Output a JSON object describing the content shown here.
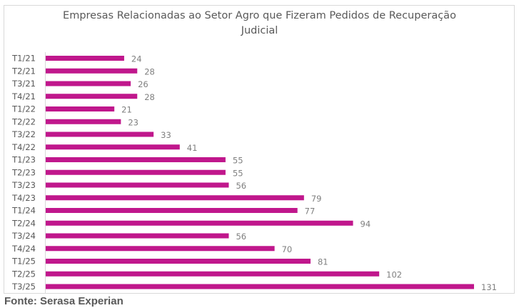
{
  "chart_data": {
    "type": "bar",
    "orientation": "horizontal",
    "title": "Empresas Relacionadas ao Setor Agro que Fizeram Pedidos de Recuperação\nJudicial",
    "xlabel": "",
    "ylabel": "",
    "categories": [
      "T1/21",
      "T2/21",
      "T3/21",
      "T4/21",
      "T1/22",
      "T2/22",
      "T3/22",
      "T4/22",
      "T1/23",
      "T2/23",
      "T3/23",
      "T4/23",
      "T1/24",
      "T2/24",
      "T3/24",
      "T4/24",
      "T1/25",
      "T2/25",
      "T3/25"
    ],
    "values": [
      24,
      28,
      26,
      28,
      21,
      23,
      33,
      41,
      55,
      55,
      56,
      79,
      77,
      94,
      56,
      70,
      81,
      102,
      131
    ],
    "xlim": [
      0,
      131
    ],
    "grid": false,
    "legend": "none",
    "data_labels": true,
    "bar_color": "#C0178C"
  },
  "source": "Fonte: Serasa Experian"
}
